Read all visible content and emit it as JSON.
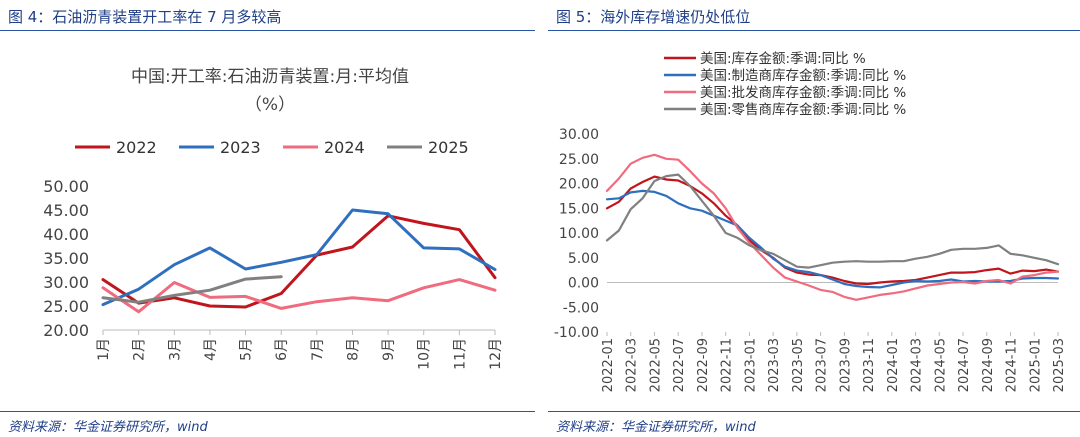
{
  "left": {
    "figure_title": "图 4：石油沥青装置开工率在 7 月多较高",
    "source": "资料来源：华金证券研究所，wind",
    "chart_data": {
      "type": "line",
      "title": "中国:开工率:石油沥青装置:月:平均值",
      "subtitle": "（%）",
      "categories": [
        "1月",
        "2月",
        "3月",
        "4月",
        "5月",
        "6月",
        "7月",
        "8月",
        "9月",
        "10月",
        "11月",
        "12月"
      ],
      "ylim": [
        20,
        50
      ],
      "yticks": [
        "20.00",
        "25.00",
        "30.00",
        "35.00",
        "40.00",
        "45.00",
        "50.00"
      ],
      "legend_position": "top",
      "series": [
        {
          "name": "2022",
          "color": "#c0151c",
          "values": [
            30.5,
            25.6,
            26.7,
            25.0,
            24.8,
            27.6,
            35.6,
            37.3,
            43.8,
            42.2,
            40.9,
            30.9
          ]
        },
        {
          "name": "2023",
          "color": "#2f6fbf",
          "values": [
            25.3,
            28.5,
            33.6,
            37.1,
            32.7,
            34.1,
            35.7,
            45.0,
            44.2,
            37.1,
            36.9,
            32.6
          ]
        },
        {
          "name": "2024",
          "color": "#ef6b7d",
          "values": [
            28.8,
            23.8,
            29.9,
            26.8,
            27.0,
            24.5,
            25.9,
            26.7,
            26.1,
            28.8,
            30.5,
            28.3
          ]
        },
        {
          "name": "2025",
          "color": "#808080",
          "values": [
            26.7,
            25.8,
            27.2,
            28.3,
            30.6,
            31.1,
            null,
            null,
            null,
            null,
            null,
            null
          ]
        }
      ]
    }
  },
  "right": {
    "figure_title": "图 5：海外库存增速仍处低位",
    "source": "资料来源：华金证券研究所，wind",
    "chart_data": {
      "type": "line",
      "title": "",
      "ylim": [
        -10,
        30
      ],
      "yticks": [
        "-10.00",
        "-5.00",
        "0.00",
        "5.00",
        "10.00",
        "15.00",
        "20.00",
        "25.00",
        "30.00"
      ],
      "xtick_labels": [
        "2022-01",
        "2022-03",
        "2022-05",
        "2022-07",
        "2022-09",
        "2022-11",
        "2023-01",
        "2023-03",
        "2023-05",
        "2023-07",
        "2023-09",
        "2023-11",
        "2024-01",
        "2024-03",
        "2024-05",
        "2024-07",
        "2024-09",
        "2024-11",
        "2025-01",
        "2025-03"
      ],
      "legend_position": "top-left",
      "series": [
        {
          "name": "美国:库存金额:季调:同比 %",
          "color": "#c0151c",
          "values": [
            15.0,
            16.3,
            19.0,
            20.3,
            21.4,
            20.8,
            20.6,
            19.5,
            18.0,
            16.0,
            13.5,
            11.5,
            8.5,
            6.5,
            5.0,
            3.0,
            2.0,
            1.6,
            1.5,
            1.0,
            0.3,
            -0.2,
            -0.3,
            0.0,
            0.2,
            0.3,
            0.5,
            1.0,
            1.5,
            2.0,
            2.0,
            2.1,
            2.5,
            2.8,
            1.8,
            2.4,
            2.3,
            2.6,
            2.2
          ]
        },
        {
          "name": "美国:制造商库存金额:季调:同比 %",
          "color": "#2f6fbf",
          "values": [
            16.8,
            17.0,
            18.2,
            18.5,
            18.3,
            17.5,
            16.0,
            15.0,
            14.5,
            13.5,
            12.5,
            11.5,
            9.0,
            7.0,
            4.8,
            3.2,
            2.4,
            2.1,
            1.5,
            0.6,
            -0.3,
            -0.7,
            -0.9,
            -1.0,
            -0.5,
            0.0,
            0.3,
            0.2,
            0.3,
            0.6,
            0.2,
            0.3,
            0.2,
            0.2,
            0.3,
            0.8,
            0.9,
            0.9,
            0.8
          ]
        },
        {
          "name": "美国:批发商库存金额:季调:同比 %",
          "color": "#ef6b7d",
          "values": [
            18.5,
            21.0,
            24.0,
            25.2,
            25.8,
            25.0,
            24.8,
            22.5,
            20.0,
            18.0,
            15.0,
            11.0,
            8.0,
            5.5,
            3.0,
            1.0,
            0.2,
            -0.6,
            -1.5,
            -1.9,
            -2.9,
            -3.5,
            -3.0,
            -2.5,
            -2.2,
            -1.8,
            -1.2,
            -0.6,
            -0.3,
            0.0,
            0.1,
            -0.2,
            0.3,
            0.5,
            -0.2,
            1.2,
            1.5,
            2.0,
            2.2
          ]
        },
        {
          "name": "美国:零售商库存金额:季调:同比 %",
          "color": "#808080",
          "values": [
            8.5,
            10.5,
            14.8,
            17.0,
            20.5,
            21.5,
            21.8,
            19.5,
            16.5,
            13.5,
            10.0,
            9.0,
            7.5,
            6.5,
            5.8,
            4.5,
            3.2,
            3.0,
            3.5,
            4.0,
            4.2,
            4.3,
            4.2,
            4.2,
            4.3,
            4.3,
            4.8,
            5.2,
            5.8,
            6.6,
            6.8,
            6.8,
            7.0,
            7.5,
            5.8,
            5.5,
            5.0,
            4.5,
            3.7
          ]
        }
      ]
    }
  }
}
